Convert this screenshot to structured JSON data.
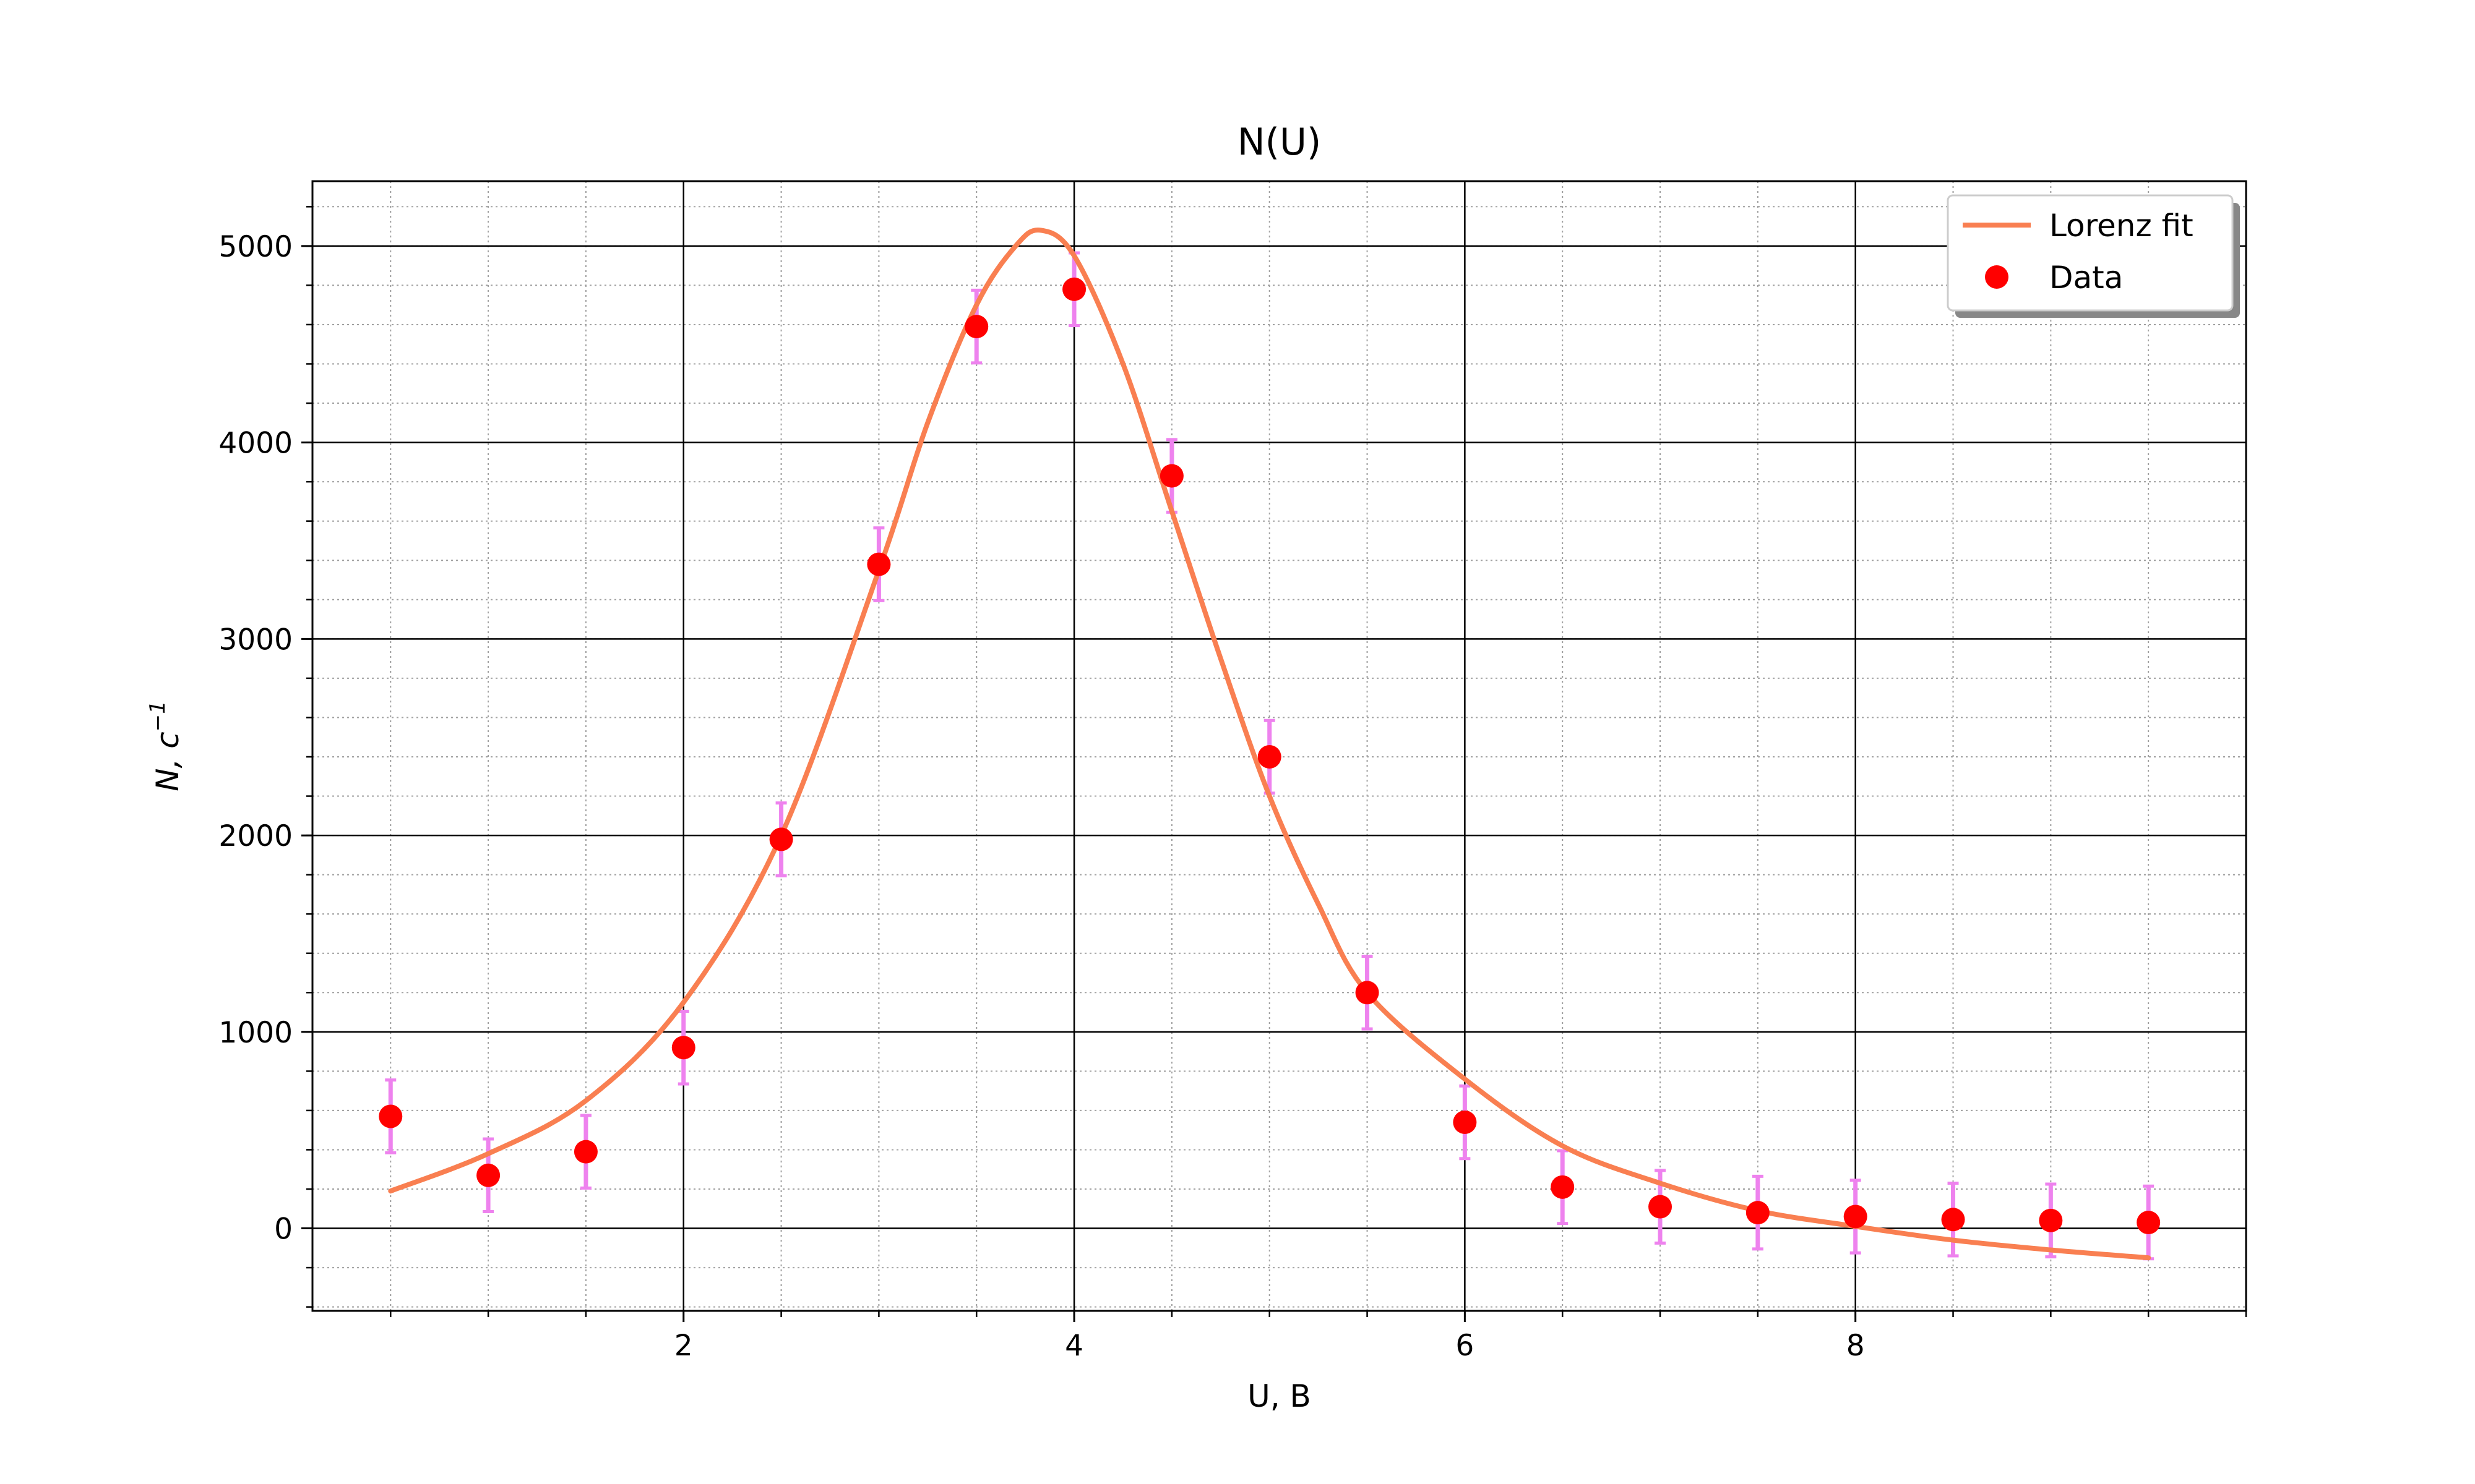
{
  "chart_data": {
    "type": "scatter",
    "title": "N(U)",
    "xlabel": "U, B",
    "ylabel_main": "N, c",
    "ylabel_sup": "−1",
    "xlim": [
      0.1,
      10.0
    ],
    "ylim": [
      -420,
      5330
    ],
    "xticks": [
      2,
      4,
      6,
      8
    ],
    "xtick_labels": [
      "2",
      "4",
      "6",
      "8"
    ],
    "yticks": [
      0,
      1000,
      2000,
      3000,
      4000,
      5000
    ],
    "ytick_labels": [
      "0",
      "1000",
      "2000",
      "3000",
      "4000",
      "5000"
    ],
    "x_minor_step": 0.5,
    "y_minor_step": 200,
    "grid": true,
    "legend_position": "top-right",
    "colors": {
      "fit": "#f97f51",
      "data": "#ff0000",
      "errorbar": "#ee82ee"
    },
    "series": [
      {
        "name": "Data",
        "kind": "scatter-errorbar",
        "x": [
          0.5,
          1.0,
          1.5,
          2.0,
          2.5,
          3.0,
          3.5,
          4.0,
          4.5,
          5.0,
          5.5,
          6.0,
          6.5,
          7.0,
          7.5,
          8.0,
          8.5,
          9.0,
          9.5
        ],
        "y": [
          570,
          270,
          390,
          920,
          1980,
          3380,
          4590,
          4780,
          3830,
          2400,
          1200,
          540,
          210,
          110,
          80,
          60,
          45,
          40,
          30
        ],
        "yerr": [
          185,
          185,
          185,
          185,
          185,
          185,
          185,
          185,
          185,
          185,
          185,
          185,
          185,
          185,
          185,
          185,
          185,
          185,
          185
        ]
      },
      {
        "name": "Lorenz fit",
        "kind": "line",
        "x": [
          0.5,
          1.0,
          1.5,
          2.0,
          2.5,
          3.0,
          3.25,
          3.5,
          3.7,
          3.83,
          4.0,
          4.25,
          4.5,
          4.75,
          5.0,
          5.25,
          5.5,
          6.0,
          6.5,
          7.0,
          7.5,
          8.0,
          8.5,
          9.0,
          9.5
        ],
        "y": [
          190,
          380,
          650,
          1150,
          2000,
          3350,
          4100,
          4700,
          5000,
          5080,
          4950,
          4400,
          3650,
          2900,
          2200,
          1650,
          1200,
          760,
          420,
          230,
          90,
          10,
          -60,
          -110,
          -150
        ]
      }
    ]
  }
}
